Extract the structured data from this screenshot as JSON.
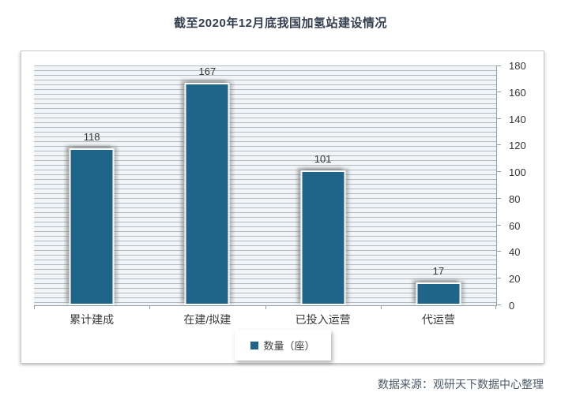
{
  "page": {
    "title": "截至2020年12月底我国加氢站建设情况",
    "source": "数据来源：观研天下数据中心整理"
  },
  "chart_data": {
    "type": "bar",
    "title": "截至2020年12月底我国加氢站建设情况",
    "categories": [
      "累计建成",
      "在建/拟建",
      "已投入运营",
      "代运营"
    ],
    "values": [
      118,
      167,
      101,
      17
    ],
    "series_name": "数量（座）",
    "ylim": [
      0,
      180
    ],
    "ytick_step": 20,
    "ytick_labels": [
      "0",
      "20",
      "40",
      "60",
      "80",
      "100",
      "120",
      "140",
      "160",
      "180"
    ],
    "y_axis_side": "right",
    "legend_position": "bottom",
    "data_labels_shown": true,
    "background_pattern": "horizontal-stripes",
    "bar_color": "#1f6589"
  },
  "legend": {
    "label": "数量（座）",
    "marker_color": "#1f6589"
  },
  "colors": {
    "bar": "#1f6589",
    "title": "#333f50",
    "source": "#4c5b6b",
    "axis": "#949ca4"
  }
}
